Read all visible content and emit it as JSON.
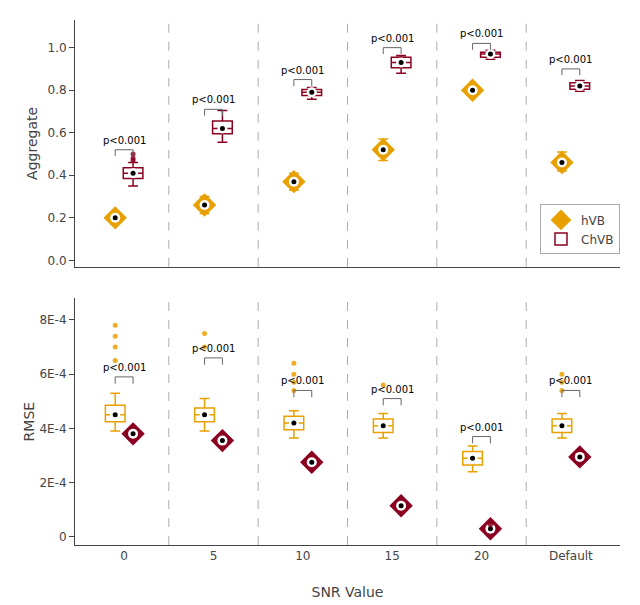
{
  "chart_data": [
    {
      "type": "box",
      "ylabel": "Aggregate",
      "categories": [
        "0",
        "5",
        "10",
        "15",
        "20",
        "Default"
      ],
      "ylim": [
        -0.03,
        1.13
      ],
      "yticks": [
        {
          "value": 0,
          "label": "0.0"
        },
        0.2,
        0.4,
        0.6,
        0.8,
        {
          "value": 1.0,
          "label": "1.0"
        }
      ],
      "grid": false,
      "legend": "lower right",
      "tick_labels": "y",
      "series": [
        {
          "name": "hVB",
          "color": "#E8A000",
          "marker": "diamond",
          "median": [
            0.2,
            0.26,
            0.37,
            0.52,
            0.8,
            0.46
          ],
          "q1": [
            0.19,
            0.24,
            0.35,
            0.49,
            0.79,
            0.44
          ],
          "q3": [
            0.21,
            0.28,
            0.39,
            0.55,
            0.81,
            0.49
          ],
          "whislo": [
            0.18,
            0.22,
            0.33,
            0.47,
            0.78,
            0.42
          ],
          "whishi": [
            0.22,
            0.3,
            0.41,
            0.57,
            0.82,
            0.51
          ],
          "fliers": [
            [],
            [],
            [],
            [],
            [],
            []
          ]
        },
        {
          "name": "ChVB",
          "color": "#8B0020",
          "marker": "box",
          "median": [
            0.41,
            0.62,
            0.79,
            0.93,
            0.97,
            0.82
          ],
          "q1": [
            0.385,
            0.595,
            0.775,
            0.905,
            0.955,
            0.805
          ],
          "q3": [
            0.435,
            0.655,
            0.803,
            0.955,
            0.978,
            0.835
          ],
          "whislo": [
            0.35,
            0.555,
            0.758,
            0.88,
            0.945,
            0.795
          ],
          "whishi": [
            0.46,
            0.705,
            0.813,
            0.963,
            0.988,
            0.845
          ],
          "fliers": [
            [
              0.48,
              0.5,
              0.47
            ],
            [],
            [],
            [],
            [],
            []
          ]
        }
      ],
      "brackets": {
        "label": "p<0.001",
        "tops": [
          0.52,
          0.71,
          0.85,
          1.0,
          1.02,
          0.9
        ],
        "drop": 0.03
      }
    },
    {
      "type": "box",
      "ylabel": "RMSE",
      "xlabel": "SNR Value",
      "categories": [
        "0",
        "5",
        "10",
        "15",
        "20",
        "Default"
      ],
      "ylim": [
        -3e-05,
        0.00088
      ],
      "yticks": [
        0,
        {
          "value": 0.0002,
          "label": "2E-4"
        },
        {
          "value": 0.0004,
          "label": "4E-4"
        },
        {
          "value": 0.0006,
          "label": "6E-4"
        },
        {
          "value": 0.0008,
          "label": "8E-4"
        }
      ],
      "grid": false,
      "series": [
        {
          "name": "hVB",
          "color": "#E8A000",
          "marker": "box",
          "median": [
            0.00045,
            0.00045,
            0.00042,
            0.00041,
            0.00029,
            0.00041
          ],
          "q1": [
            0.000425,
            0.000425,
            0.000395,
            0.000385,
            0.000265,
            0.000385
          ],
          "q3": [
            0.000485,
            0.000475,
            0.000445,
            0.000435,
            0.000315,
            0.000435
          ],
          "whislo": [
            0.00039,
            0.00039,
            0.000365,
            0.000365,
            0.00024,
            0.000365
          ],
          "whishi": [
            0.00053,
            0.00051,
            0.000465,
            0.000455,
            0.000335,
            0.000455
          ],
          "fliers": [
            [
              0.00065,
              0.0007,
              0.00074,
              0.00078
            ],
            [
              0.0007,
              0.00075
            ],
            [
              0.00054,
              0.00057,
              0.0006,
              0.00064
            ],
            [
              0.00056
            ],
            [],
            [
              0.00054,
              0.00057,
              0.0006
            ]
          ]
        },
        {
          "name": "ChVB",
          "color": "#8B0020",
          "marker": "diamond",
          "median": [
            0.00038,
            0.000355,
            0.000275,
            0.000115,
            3e-05,
            0.000295
          ],
          "q1": [
            0.000372,
            0.000348,
            0.000268,
            0.000108,
            2.5e-05,
            0.000288
          ],
          "q3": [
            0.000388,
            0.000362,
            0.000282,
            0.000122,
            3.5e-05,
            0.000302
          ],
          "whislo": [
            0.000362,
            0.00034,
            0.00026,
            0.0001,
            1.8e-05,
            0.000278
          ],
          "whishi": [
            0.000398,
            0.00037,
            0.00029,
            0.00013,
            4.2e-05,
            0.000312
          ],
          "fliers": [
            [],
            [],
            [],
            [],
            [
              4.5e-05
            ],
            []
          ]
        }
      ],
      "brackets": {
        "label": "p<0.001",
        "tops": [
          0.00059,
          0.00066,
          0.00054,
          0.00051,
          0.00037,
          0.00054
        ],
        "drop": 2.5e-05
      }
    }
  ]
}
